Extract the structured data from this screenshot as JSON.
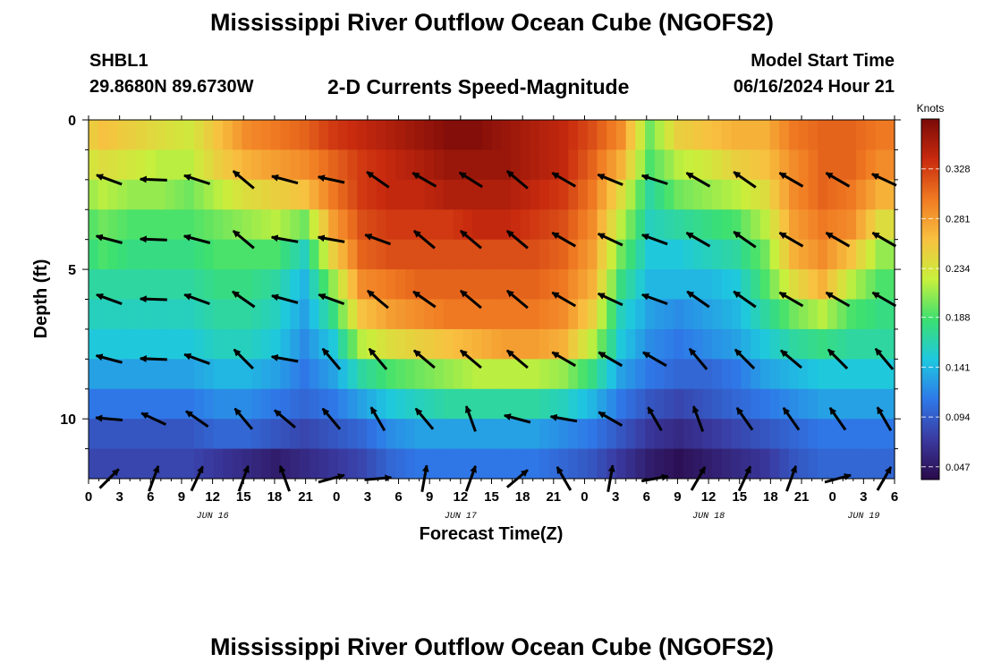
{
  "page": {
    "title": "Mississippi River Outflow Ocean Cube (NGOFS2)",
    "title_repeat": "Mississippi River Outflow Ocean Cube (NGOFS2)",
    "station": "SHBL1",
    "coords": "29.8680N  89.6730W",
    "plot_title": "2-D Currents Speed-Magnitude",
    "model_start_label": "Model Start Time",
    "model_start_value": "06/16/2024 Hour 21"
  },
  "chart_data": {
    "type": "heatmap",
    "title": "2-D Currents Speed-Magnitude",
    "xlabel": "Forecast Time(Z)",
    "ylabel": "Depth (ft)",
    "x_range_hours": [
      0,
      78
    ],
    "x_tick_hours": [
      0,
      3,
      6,
      9,
      12,
      15,
      18,
      21,
      24,
      27,
      30,
      33,
      36,
      39,
      42,
      45,
      48,
      51,
      54,
      57,
      60,
      63,
      66,
      69,
      72,
      75,
      78
    ],
    "x_tick_labels": [
      "0",
      "3",
      "6",
      "9",
      "12",
      "15",
      "18",
      "21",
      "0",
      "3",
      "6",
      "9",
      "12",
      "15",
      "18",
      "21",
      "0",
      "3",
      "6",
      "9",
      "12",
      "15",
      "18",
      "21",
      "0",
      "3",
      "6"
    ],
    "date_labels": [
      {
        "hour": 12,
        "label": "JUN 16"
      },
      {
        "hour": 36,
        "label": "JUN 17"
      },
      {
        "hour": 60,
        "label": "JUN 18"
      },
      {
        "hour": 75,
        "label": "JUN 19"
      }
    ],
    "y_range": [
      0,
      12
    ],
    "y_ticks": [
      0,
      5,
      10
    ],
    "y_tick_labels": [
      "0",
      "5",
      "10"
    ],
    "colorbar": {
      "label": "Knots",
      "range": [
        0.035,
        0.375
      ],
      "ticks": [
        0.047,
        0.094,
        0.141,
        0.188,
        0.234,
        0.281,
        0.328
      ],
      "tick_labels": [
        "0.047",
        "0.094",
        "0.141",
        "0.188",
        "0.234",
        "0.281",
        "0.328"
      ],
      "colors": [
        "#2a0a4a",
        "#3a3aa0",
        "#2f78e8",
        "#1ec8e0",
        "#3ce070",
        "#c8f03c",
        "#f8c040",
        "#f07a22",
        "#c82a0e",
        "#7a0a08"
      ]
    },
    "depth_layers_ft": [
      0.5,
      1.5,
      2.5,
      3.5,
      4.5,
      5.5,
      6.5,
      7.5,
      8.5,
      9.5,
      10.5,
      11.5
    ],
    "speed_knots": [
      [
        0.26,
        0.25,
        0.24,
        0.23,
        0.26,
        0.29,
        0.3,
        0.31,
        0.33,
        0.34,
        0.35,
        0.36,
        0.37,
        0.37,
        0.36,
        0.35,
        0.34,
        0.32,
        0.29,
        0.2,
        0.25,
        0.26,
        0.27,
        0.27,
        0.3,
        0.31,
        0.31,
        0.3
      ],
      [
        0.24,
        0.23,
        0.22,
        0.22,
        0.25,
        0.27,
        0.28,
        0.29,
        0.31,
        0.33,
        0.34,
        0.35,
        0.36,
        0.36,
        0.36,
        0.35,
        0.34,
        0.31,
        0.27,
        0.19,
        0.22,
        0.23,
        0.25,
        0.26,
        0.29,
        0.31,
        0.31,
        0.29
      ],
      [
        0.22,
        0.21,
        0.21,
        0.2,
        0.22,
        0.24,
        0.25,
        0.26,
        0.3,
        0.33,
        0.34,
        0.34,
        0.35,
        0.35,
        0.35,
        0.34,
        0.33,
        0.3,
        0.24,
        0.17,
        0.2,
        0.21,
        0.22,
        0.24,
        0.29,
        0.31,
        0.3,
        0.27
      ],
      [
        0.2,
        0.19,
        0.19,
        0.19,
        0.2,
        0.21,
        0.22,
        0.2,
        0.28,
        0.32,
        0.33,
        0.33,
        0.33,
        0.34,
        0.34,
        0.33,
        0.32,
        0.29,
        0.22,
        0.16,
        0.17,
        0.18,
        0.19,
        0.22,
        0.28,
        0.3,
        0.29,
        0.24
      ],
      [
        0.19,
        0.18,
        0.18,
        0.18,
        0.19,
        0.19,
        0.19,
        0.16,
        0.25,
        0.31,
        0.32,
        0.32,
        0.32,
        0.32,
        0.32,
        0.32,
        0.31,
        0.28,
        0.2,
        0.15,
        0.15,
        0.16,
        0.17,
        0.2,
        0.27,
        0.29,
        0.26,
        0.21
      ],
      [
        0.17,
        0.17,
        0.17,
        0.17,
        0.18,
        0.18,
        0.17,
        0.14,
        0.21,
        0.29,
        0.3,
        0.31,
        0.31,
        0.31,
        0.31,
        0.31,
        0.3,
        0.27,
        0.18,
        0.14,
        0.14,
        0.14,
        0.15,
        0.19,
        0.24,
        0.27,
        0.22,
        0.19
      ],
      [
        0.16,
        0.16,
        0.16,
        0.16,
        0.17,
        0.17,
        0.16,
        0.13,
        0.18,
        0.26,
        0.28,
        0.29,
        0.3,
        0.3,
        0.3,
        0.3,
        0.29,
        0.25,
        0.16,
        0.13,
        0.12,
        0.13,
        0.14,
        0.17,
        0.2,
        0.22,
        0.19,
        0.18
      ],
      [
        0.15,
        0.15,
        0.15,
        0.15,
        0.16,
        0.16,
        0.15,
        0.12,
        0.15,
        0.22,
        0.24,
        0.25,
        0.26,
        0.27,
        0.28,
        0.28,
        0.27,
        0.22,
        0.15,
        0.12,
        0.11,
        0.12,
        0.13,
        0.15,
        0.17,
        0.18,
        0.17,
        0.17
      ],
      [
        0.13,
        0.13,
        0.13,
        0.13,
        0.14,
        0.14,
        0.13,
        0.11,
        0.13,
        0.17,
        0.19,
        0.2,
        0.21,
        0.22,
        0.22,
        0.22,
        0.21,
        0.18,
        0.13,
        0.11,
        0.1,
        0.1,
        0.11,
        0.13,
        0.14,
        0.15,
        0.15,
        0.15
      ],
      [
        0.11,
        0.11,
        0.11,
        0.11,
        0.12,
        0.12,
        0.11,
        0.1,
        0.11,
        0.13,
        0.15,
        0.16,
        0.17,
        0.17,
        0.17,
        0.17,
        0.16,
        0.14,
        0.11,
        0.09,
        0.08,
        0.09,
        0.1,
        0.11,
        0.12,
        0.13,
        0.13,
        0.13
      ],
      [
        0.09,
        0.09,
        0.09,
        0.09,
        0.1,
        0.1,
        0.09,
        0.08,
        0.09,
        0.1,
        0.12,
        0.13,
        0.13,
        0.13,
        0.13,
        0.13,
        0.12,
        0.11,
        0.09,
        0.07,
        0.06,
        0.07,
        0.08,
        0.09,
        0.1,
        0.11,
        0.11,
        0.11
      ],
      [
        0.08,
        0.08,
        0.08,
        0.08,
        0.07,
        0.06,
        0.05,
        0.06,
        0.07,
        0.08,
        0.1,
        0.11,
        0.11,
        0.11,
        0.11,
        0.11,
        0.1,
        0.09,
        0.07,
        0.05,
        0.04,
        0.05,
        0.06,
        0.07,
        0.09,
        0.1,
        0.1,
        0.1
      ]
    ],
    "vector_rows_depth_ft": [
      2,
      4,
      6,
      8,
      10,
      12
    ],
    "vector_times_hours": [
      2,
      6.3,
      10.5,
      15,
      19,
      23.5,
      28,
      32.5,
      37,
      41.5,
      46,
      50.5,
      54.8,
      59,
      63.5,
      68,
      72.5,
      77
    ],
    "vector_angles_deg": [
      [
        160,
        178,
        162,
        140,
        165,
        168,
        145,
        150,
        148,
        140,
        150,
        158,
        162,
        150,
        145,
        150,
        150,
        155
      ],
      [
        165,
        178,
        165,
        140,
        170,
        170,
        160,
        140,
        140,
        140,
        150,
        155,
        160,
        150,
        145,
        150,
        150,
        150
      ],
      [
        160,
        178,
        160,
        145,
        165,
        160,
        140,
        145,
        140,
        140,
        150,
        155,
        160,
        145,
        145,
        150,
        150,
        150
      ],
      [
        165,
        178,
        160,
        135,
        170,
        130,
        130,
        140,
        140,
        140,
        150,
        150,
        150,
        130,
        135,
        140,
        135,
        130
      ],
      [
        175,
        155,
        145,
        130,
        140,
        130,
        120,
        130,
        110,
        165,
        170,
        150,
        120,
        110,
        125,
        125,
        125,
        120
      ],
      [
        45,
        70,
        65,
        70,
        110,
        15,
        5,
        80,
        70,
        40,
        120,
        80,
        10,
        60,
        65,
        70,
        15,
        60
      ]
    ]
  }
}
